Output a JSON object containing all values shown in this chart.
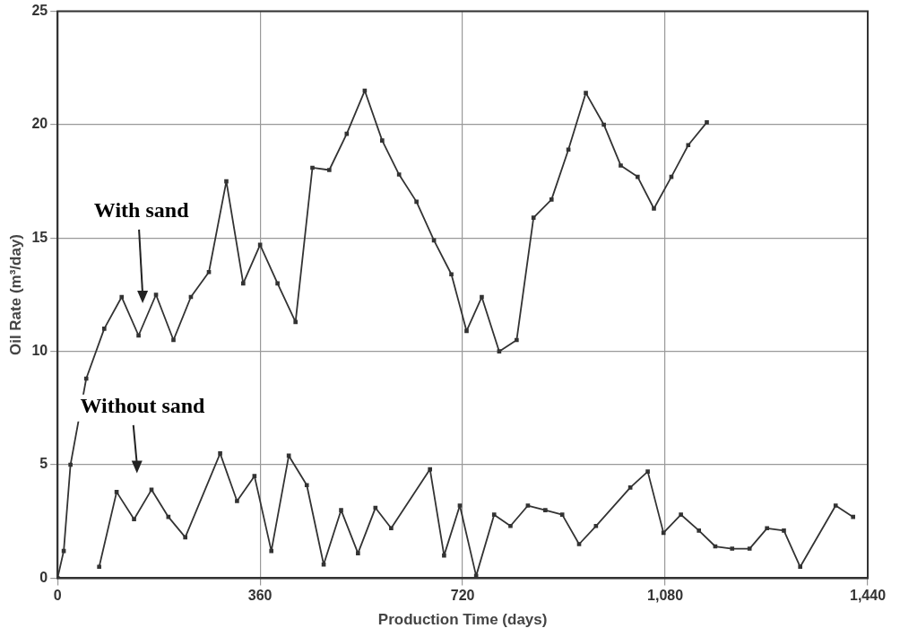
{
  "chart_data": {
    "type": "line",
    "xlabel": "Production Time (days)",
    "ylabel": "Oil Rate (m³/day)",
    "xlim": [
      0,
      1440
    ],
    "xticks": [
      0,
      360,
      720,
      {
        "value": 1080,
        "label": "1,080"
      },
      {
        "value": 1440,
        "label": "1,440"
      }
    ],
    "ylim": [
      0,
      25
    ],
    "yticks": [
      0,
      5,
      10,
      15,
      20,
      25
    ],
    "grid": true,
    "legend": false,
    "marker": "square",
    "line_style": "solid",
    "series": [
      {
        "color": "#333333",
        "x": [
          0,
          11,
          23,
          51,
          83,
          114,
          144,
          175,
          206,
          237,
          269,
          300,
          330,
          360,
          391,
          423,
          453,
          483,
          514,
          546,
          577,
          607,
          638,
          669,
          700,
          727,
          754,
          785,
          816,
          846,
          878,
          908,
          939,
          971,
          1001,
          1031,
          1060,
          1091,
          1121,
          1154
        ],
        "values": [
          0,
          1.2,
          5.0,
          8.8,
          11.0,
          12.4,
          10.7,
          12.5,
          10.5,
          12.4,
          13.5,
          17.5,
          13.0,
          14.7,
          13.0,
          11.3,
          18.1,
          18.0,
          19.6,
          21.5,
          19.3,
          17.8,
          16.6,
          14.9,
          13.4,
          10.9,
          12.4,
          10.0,
          10.5,
          15.9,
          16.7,
          18.9,
          21.4,
          20.0,
          18.2,
          17.7,
          16.3,
          17.7,
          19.1,
          20.1
        ]
      },
      {
        "color": "#333333",
        "x": [
          74,
          105,
          136,
          167,
          197,
          227,
          289,
          319,
          350,
          380,
          411,
          443,
          473,
          504,
          534,
          565,
          593,
          662,
          687,
          715,
          744,
          776,
          805,
          836,
          867,
          897,
          927,
          957,
          1018,
          1049,
          1077,
          1108,
          1140,
          1169,
          1199,
          1230,
          1261,
          1291,
          1320,
          1383,
          1414
        ],
        "values": [
          0.5,
          3.8,
          2.6,
          3.9,
          2.7,
          1.8,
          5.5,
          3.4,
          4.5,
          1.2,
          5.4,
          4.1,
          0.6,
          3.0,
          1.1,
          3.1,
          2.2,
          4.8,
          1.0,
          3.2,
          0.1,
          2.8,
          2.3,
          3.2,
          3.0,
          2.8,
          1.5,
          2.3,
          4.0,
          4.7,
          2.0,
          2.8,
          2.1,
          1.4,
          1.3,
          1.3,
          2.2,
          2.1,
          0.5,
          3.2,
          2.7
        ]
      }
    ],
    "annotations": [
      "With sand",
      "Without sand"
    ]
  }
}
